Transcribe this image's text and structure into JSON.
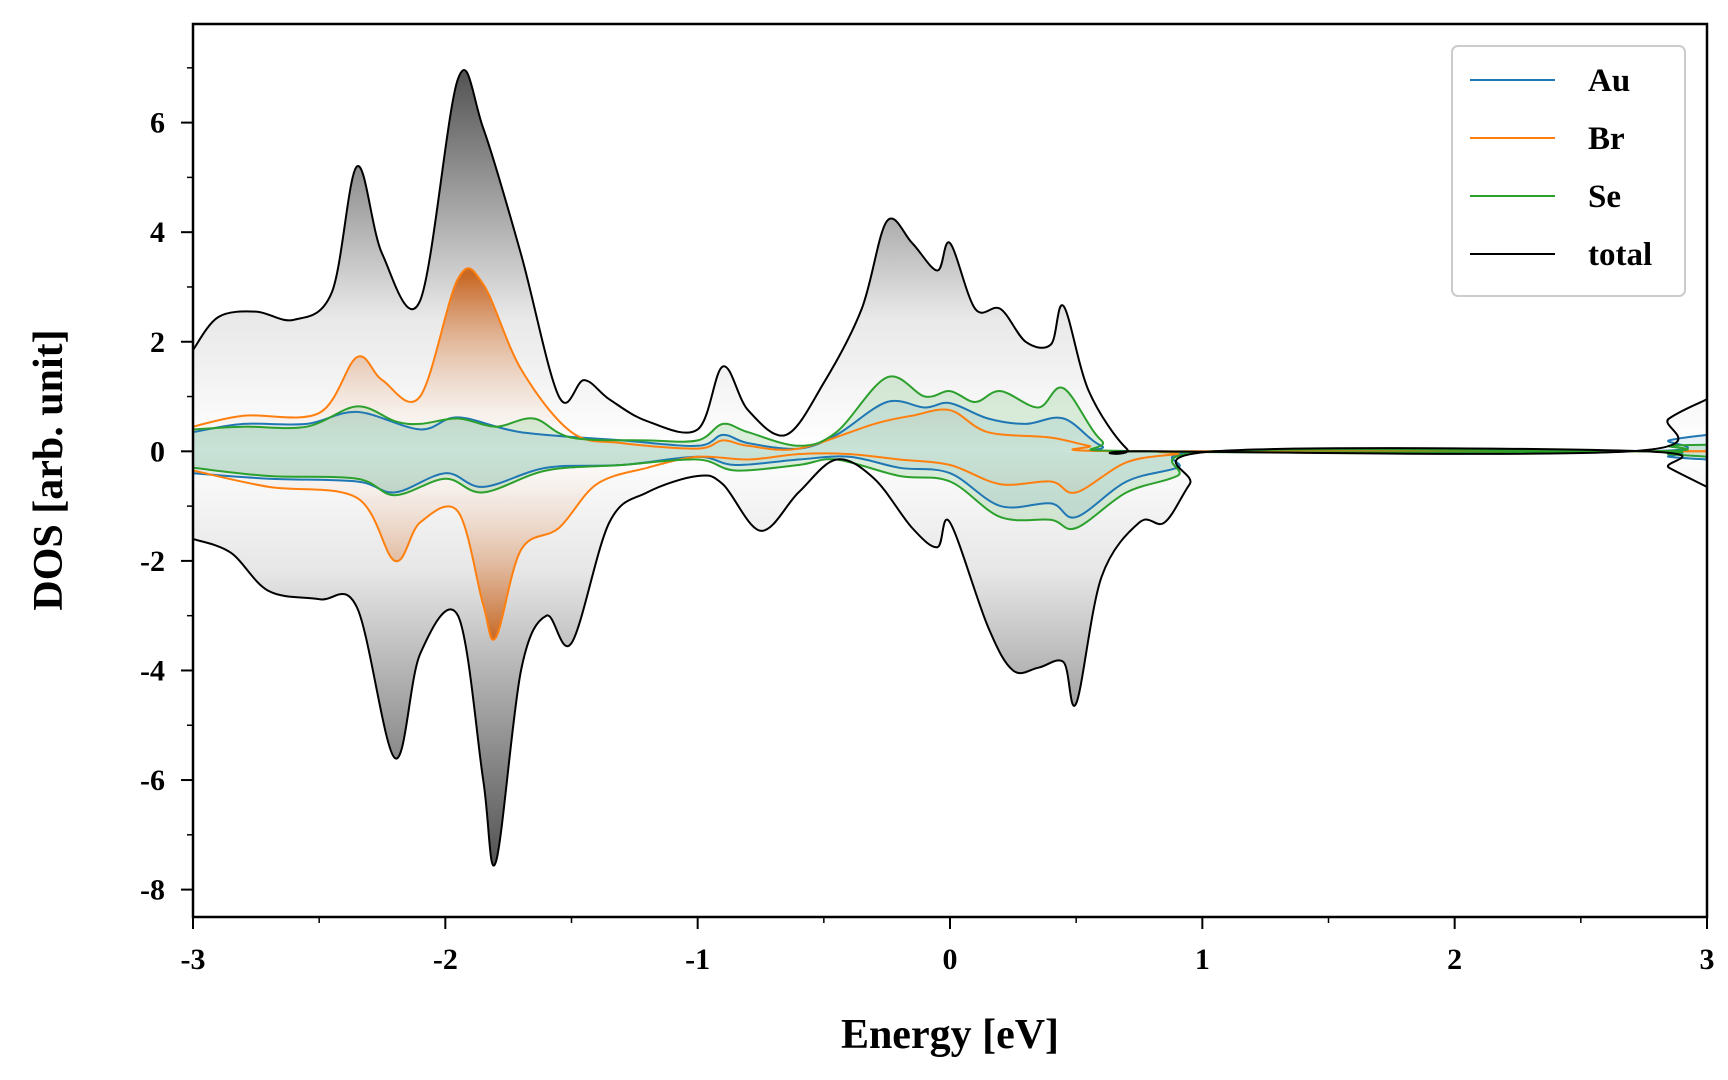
{
  "chart_data": {
    "type": "line",
    "title": "",
    "xlabel": "Energy [eV]",
    "ylabel": "DOS [arb. unit]",
    "xlim": [
      -3,
      3
    ],
    "ylim": [
      -8.5,
      7.8
    ],
    "xticks": [
      -3,
      -2,
      -1,
      0,
      1,
      2,
      3
    ],
    "xtick_labels": [
      "-3",
      "-2",
      "-1",
      "0",
      "1",
      "2",
      "3"
    ],
    "yticks": [
      6,
      4,
      2,
      0,
      -2,
      -4,
      -6,
      -8
    ],
    "ytick_labels": [
      "6",
      "4",
      "2",
      "0",
      "-2",
      "-4",
      "-6",
      "-8"
    ],
    "legend_position": "top-right",
    "series": [
      {
        "name": "Au",
        "color": "#1f77b4",
        "up": [
          [
            -3,
            0.35
          ],
          [
            -2.8,
            0.5
          ],
          [
            -2.55,
            0.5
          ],
          [
            -2.35,
            0.72
          ],
          [
            -2.1,
            0.4
          ],
          [
            -1.95,
            0.62
          ],
          [
            -1.7,
            0.35
          ],
          [
            -1.3,
            0.2
          ],
          [
            -1.0,
            0.1
          ],
          [
            -0.9,
            0.3
          ],
          [
            -0.8,
            0.15
          ],
          [
            -0.6,
            0.05
          ],
          [
            -0.45,
            0.3
          ],
          [
            -0.25,
            0.9
          ],
          [
            -0.1,
            0.8
          ],
          [
            0.0,
            0.88
          ],
          [
            0.15,
            0.6
          ],
          [
            0.3,
            0.5
          ],
          [
            0.45,
            0.6
          ],
          [
            0.6,
            0.1
          ],
          [
            0.75,
            0
          ],
          [
            2.75,
            0
          ],
          [
            2.85,
            0.2
          ],
          [
            3.0,
            0.3
          ]
        ],
        "down": [
          [
            -3,
            -0.4
          ],
          [
            -2.7,
            -0.5
          ],
          [
            -2.35,
            -0.55
          ],
          [
            -2.2,
            -0.75
          ],
          [
            -2.0,
            -0.4
          ],
          [
            -1.85,
            -0.65
          ],
          [
            -1.6,
            -0.3
          ],
          [
            -1.3,
            -0.25
          ],
          [
            -1.0,
            -0.1
          ],
          [
            -0.85,
            -0.25
          ],
          [
            -0.6,
            -0.15
          ],
          [
            -0.4,
            -0.1
          ],
          [
            -0.2,
            -0.3
          ],
          [
            0.0,
            -0.4
          ],
          [
            0.2,
            -1.0
          ],
          [
            0.4,
            -0.95
          ],
          [
            0.5,
            -1.2
          ],
          [
            0.7,
            -0.55
          ],
          [
            0.9,
            -0.3
          ],
          [
            1.05,
            0
          ],
          [
            2.75,
            0
          ],
          [
            2.85,
            -0.1
          ],
          [
            3.0,
            -0.15
          ]
        ]
      },
      {
        "name": "Br",
        "color": "#ff7f0e",
        "up": [
          [
            -3,
            0.45
          ],
          [
            -2.8,
            0.65
          ],
          [
            -2.5,
            0.7
          ],
          [
            -2.35,
            1.72
          ],
          [
            -2.25,
            1.3
          ],
          [
            -2.1,
            1.0
          ],
          [
            -1.95,
            3.15
          ],
          [
            -1.85,
            3.05
          ],
          [
            -1.7,
            1.5
          ],
          [
            -1.5,
            0.35
          ],
          [
            -1.3,
            0.15
          ],
          [
            -1.0,
            0.05
          ],
          [
            -0.9,
            0.2
          ],
          [
            -0.8,
            0.1
          ],
          [
            -0.6,
            0.05
          ],
          [
            -0.3,
            0.5
          ],
          [
            -0.15,
            0.65
          ],
          [
            0.0,
            0.75
          ],
          [
            0.15,
            0.35
          ],
          [
            0.4,
            0.25
          ],
          [
            0.55,
            0.1
          ],
          [
            0.7,
            0
          ],
          [
            3.0,
            0
          ]
        ],
        "down": [
          [
            -3,
            -0.35
          ],
          [
            -2.7,
            -0.65
          ],
          [
            -2.35,
            -0.85
          ],
          [
            -2.2,
            -2.0
          ],
          [
            -2.1,
            -1.3
          ],
          [
            -1.95,
            -1.1
          ],
          [
            -1.85,
            -2.8
          ],
          [
            -1.8,
            -3.4
          ],
          [
            -1.7,
            -1.8
          ],
          [
            -1.55,
            -1.4
          ],
          [
            -1.4,
            -0.6
          ],
          [
            -1.2,
            -0.3
          ],
          [
            -1.0,
            -0.1
          ],
          [
            -0.8,
            -0.15
          ],
          [
            -0.6,
            -0.05
          ],
          [
            -0.4,
            -0.05
          ],
          [
            -0.2,
            -0.15
          ],
          [
            0.0,
            -0.25
          ],
          [
            0.2,
            -0.6
          ],
          [
            0.4,
            -0.55
          ],
          [
            0.5,
            -0.75
          ],
          [
            0.7,
            -0.2
          ],
          [
            0.9,
            -0.05
          ],
          [
            1.0,
            0
          ],
          [
            3.0,
            0
          ]
        ]
      },
      {
        "name": "Se",
        "color": "#2ca02c",
        "up": [
          [
            -3,
            0.4
          ],
          [
            -2.8,
            0.45
          ],
          [
            -2.55,
            0.45
          ],
          [
            -2.35,
            0.82
          ],
          [
            -2.2,
            0.55
          ],
          [
            -2.1,
            0.5
          ],
          [
            -1.95,
            0.6
          ],
          [
            -1.8,
            0.45
          ],
          [
            -1.65,
            0.6
          ],
          [
            -1.5,
            0.25
          ],
          [
            -1.2,
            0.2
          ],
          [
            -1.0,
            0.2
          ],
          [
            -0.9,
            0.5
          ],
          [
            -0.8,
            0.35
          ],
          [
            -0.6,
            0.1
          ],
          [
            -0.45,
            0.35
          ],
          [
            -0.25,
            1.35
          ],
          [
            -0.1,
            1.0
          ],
          [
            0.0,
            1.1
          ],
          [
            0.1,
            0.9
          ],
          [
            0.2,
            1.1
          ],
          [
            0.35,
            0.8
          ],
          [
            0.45,
            1.15
          ],
          [
            0.6,
            0.2
          ],
          [
            0.75,
            0
          ],
          [
            2.75,
            0
          ],
          [
            2.85,
            0.1
          ],
          [
            3.0,
            0.12
          ]
        ],
        "down": [
          [
            -3,
            -0.3
          ],
          [
            -2.7,
            -0.45
          ],
          [
            -2.35,
            -0.5
          ],
          [
            -2.2,
            -0.8
          ],
          [
            -2.0,
            -0.5
          ],
          [
            -1.85,
            -0.75
          ],
          [
            -1.6,
            -0.35
          ],
          [
            -1.3,
            -0.25
          ],
          [
            -1.0,
            -0.15
          ],
          [
            -0.85,
            -0.35
          ],
          [
            -0.6,
            -0.25
          ],
          [
            -0.45,
            -0.15
          ],
          [
            -0.2,
            -0.45
          ],
          [
            0.0,
            -0.55
          ],
          [
            0.2,
            -1.2
          ],
          [
            0.4,
            -1.25
          ],
          [
            0.5,
            -1.4
          ],
          [
            0.7,
            -0.75
          ],
          [
            0.9,
            -0.45
          ],
          [
            1.05,
            0
          ],
          [
            2.75,
            0
          ],
          [
            2.85,
            -0.05
          ],
          [
            3.0,
            -0.1
          ]
        ]
      },
      {
        "name": "total",
        "color": "#000000",
        "up": [
          [
            -3,
            1.85
          ],
          [
            -2.9,
            2.45
          ],
          [
            -2.75,
            2.55
          ],
          [
            -2.6,
            2.4
          ],
          [
            -2.45,
            2.9
          ],
          [
            -2.35,
            5.2
          ],
          [
            -2.25,
            3.6
          ],
          [
            -2.1,
            2.75
          ],
          [
            -1.95,
            6.8
          ],
          [
            -1.85,
            5.9
          ],
          [
            -1.7,
            3.6
          ],
          [
            -1.55,
            1.0
          ],
          [
            -1.45,
            1.3
          ],
          [
            -1.35,
            0.95
          ],
          [
            -1.2,
            0.55
          ],
          [
            -1.0,
            0.4
          ],
          [
            -0.9,
            1.55
          ],
          [
            -0.8,
            0.75
          ],
          [
            -0.65,
            0.3
          ],
          [
            -0.5,
            1.25
          ],
          [
            -0.35,
            2.6
          ],
          [
            -0.25,
            4.2
          ],
          [
            -0.15,
            3.8
          ],
          [
            -0.05,
            3.3
          ],
          [
            0.0,
            3.8
          ],
          [
            0.1,
            2.6
          ],
          [
            0.2,
            2.6
          ],
          [
            0.3,
            2.0
          ],
          [
            0.4,
            1.95
          ],
          [
            0.45,
            2.65
          ],
          [
            0.55,
            1.1
          ],
          [
            0.7,
            0.05
          ],
          [
            0.8,
            0
          ],
          [
            2.7,
            0
          ],
          [
            2.85,
            0.6
          ],
          [
            3.0,
            0.95
          ]
        ],
        "down": [
          [
            -3,
            -1.6
          ],
          [
            -2.85,
            -1.85
          ],
          [
            -2.7,
            -2.55
          ],
          [
            -2.5,
            -2.7
          ],
          [
            -2.35,
            -2.85
          ],
          [
            -2.2,
            -5.6
          ],
          [
            -2.1,
            -3.7
          ],
          [
            -1.95,
            -3.0
          ],
          [
            -1.85,
            -6.0
          ],
          [
            -1.8,
            -7.5
          ],
          [
            -1.7,
            -4.0
          ],
          [
            -1.6,
            -3.0
          ],
          [
            -1.5,
            -3.5
          ],
          [
            -1.35,
            -1.3
          ],
          [
            -1.2,
            -0.75
          ],
          [
            -1.0,
            -0.45
          ],
          [
            -0.9,
            -0.6
          ],
          [
            -0.75,
            -1.45
          ],
          [
            -0.6,
            -0.75
          ],
          [
            -0.45,
            -0.15
          ],
          [
            -0.3,
            -0.5
          ],
          [
            -0.15,
            -1.4
          ],
          [
            -0.05,
            -1.75
          ],
          [
            0.0,
            -1.3
          ],
          [
            0.15,
            -3.2
          ],
          [
            0.25,
            -4.0
          ],
          [
            0.35,
            -3.95
          ],
          [
            0.45,
            -3.85
          ],
          [
            0.5,
            -4.6
          ],
          [
            0.6,
            -2.3
          ],
          [
            0.75,
            -1.3
          ],
          [
            0.85,
            -1.3
          ],
          [
            0.95,
            -0.6
          ],
          [
            1.05,
            0
          ],
          [
            2.75,
            0
          ],
          [
            2.85,
            -0.3
          ],
          [
            3.0,
            -0.65
          ]
        ]
      }
    ]
  }
}
